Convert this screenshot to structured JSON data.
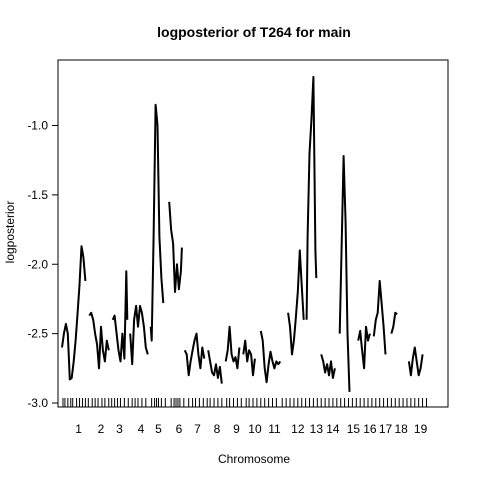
{
  "chart_data": {
    "type": "line",
    "title": "logposterior of T264 for main",
    "xlabel": "Chromosome",
    "ylabel": "logposterior",
    "ylim": [
      -3.0,
      -0.6
    ],
    "yticks": [
      -3.0,
      -2.5,
      -2.0,
      -1.5,
      -1.0
    ],
    "ytick_labels": [
      "-3.0",
      "-2.5",
      "-2.0",
      "-1.5",
      "-1.0"
    ],
    "xlim": [
      0,
      19.6
    ],
    "grid": false,
    "legend": "none",
    "line_color": "#000000",
    "chromosomes": [
      {
        "label": "1",
        "center": 0.85,
        "points": [
          [
            0.0,
            -2.6
          ],
          [
            0.1,
            -2.5
          ],
          [
            0.2,
            -2.43
          ],
          [
            0.3,
            -2.5
          ],
          [
            0.4,
            -2.83
          ],
          [
            0.5,
            -2.82
          ],
          [
            0.6,
            -2.7
          ],
          [
            0.7,
            -2.55
          ],
          [
            0.8,
            -2.35
          ],
          [
            0.9,
            -2.15
          ],
          [
            1.0,
            -1.87
          ],
          [
            1.1,
            -1.95
          ],
          [
            1.2,
            -2.12
          ]
        ]
      },
      {
        "label": "2",
        "center": 2.0,
        "points": [
          [
            1.4,
            -2.37
          ],
          [
            1.5,
            -2.35
          ],
          [
            1.6,
            -2.4
          ],
          [
            1.7,
            -2.5
          ],
          [
            1.8,
            -2.58
          ],
          [
            1.9,
            -2.75
          ],
          [
            2.0,
            -2.45
          ],
          [
            2.1,
            -2.62
          ],
          [
            2.2,
            -2.7
          ],
          [
            2.3,
            -2.55
          ],
          [
            2.4,
            -2.62
          ]
        ]
      },
      {
        "label": "3",
        "center": 2.95,
        "points": [
          [
            2.6,
            -2.4
          ],
          [
            2.7,
            -2.37
          ],
          [
            2.8,
            -2.5
          ],
          [
            2.9,
            -2.62
          ],
          [
            3.0,
            -2.7
          ],
          [
            3.1,
            -2.5
          ],
          [
            3.2,
            -2.68
          ],
          [
            3.3,
            -2.05
          ],
          [
            3.35,
            -2.4
          ]
        ]
      },
      {
        "label": "4",
        "center": 4.05,
        "points": [
          [
            3.5,
            -2.5
          ],
          [
            3.6,
            -2.72
          ],
          [
            3.7,
            -2.4
          ],
          [
            3.8,
            -2.3
          ],
          [
            3.9,
            -2.45
          ],
          [
            4.0,
            -2.3
          ],
          [
            4.1,
            -2.35
          ],
          [
            4.2,
            -2.45
          ],
          [
            4.3,
            -2.6
          ],
          [
            4.4,
            -2.65
          ]
        ]
      },
      {
        "label": "5",
        "center": 4.95,
        "points": [
          [
            4.55,
            -2.45
          ],
          [
            4.6,
            -2.55
          ],
          [
            4.7,
            -1.8
          ],
          [
            4.8,
            -0.85
          ],
          [
            4.9,
            -1.0
          ],
          [
            5.0,
            -1.8
          ],
          [
            5.1,
            -2.1
          ],
          [
            5.2,
            -2.28
          ]
        ]
      },
      {
        "label": "6",
        "center": 6.0,
        "points": [
          [
            5.5,
            -1.55
          ],
          [
            5.6,
            -1.75
          ],
          [
            5.7,
            -1.85
          ],
          [
            5.8,
            -2.2
          ],
          [
            5.9,
            -2.0
          ],
          [
            6.0,
            -2.18
          ],
          [
            6.1,
            -2.05
          ],
          [
            6.15,
            -1.88
          ]
        ]
      },
      {
        "label": "7",
        "center": 6.95,
        "points": [
          [
            6.3,
            -2.62
          ],
          [
            6.4,
            -2.65
          ],
          [
            6.5,
            -2.8
          ],
          [
            6.6,
            -2.7
          ],
          [
            6.7,
            -2.62
          ],
          [
            6.8,
            -2.55
          ],
          [
            6.9,
            -2.5
          ],
          [
            7.0,
            -2.65
          ],
          [
            7.1,
            -2.75
          ],
          [
            7.2,
            -2.6
          ],
          [
            7.3,
            -2.68
          ]
        ]
      },
      {
        "label": "8",
        "center": 7.95,
        "points": [
          [
            7.5,
            -2.62
          ],
          [
            7.6,
            -2.7
          ],
          [
            7.7,
            -2.78
          ],
          [
            7.8,
            -2.8
          ],
          [
            7.9,
            -2.72
          ],
          [
            8.0,
            -2.82
          ],
          [
            8.1,
            -2.74
          ],
          [
            8.2,
            -2.86
          ]
        ]
      },
      {
        "label": "9",
        "center": 8.95,
        "points": [
          [
            8.4,
            -2.7
          ],
          [
            8.5,
            -2.62
          ],
          [
            8.6,
            -2.45
          ],
          [
            8.7,
            -2.65
          ],
          [
            8.8,
            -2.7
          ],
          [
            8.9,
            -2.67
          ],
          [
            9.0,
            -2.75
          ],
          [
            9.1,
            -2.6
          ]
        ]
      },
      {
        "label": "10",
        "center": 9.9,
        "points": [
          [
            9.3,
            -2.65
          ],
          [
            9.4,
            -2.55
          ],
          [
            9.5,
            -2.7
          ],
          [
            9.6,
            -2.62
          ],
          [
            9.7,
            -2.65
          ],
          [
            9.8,
            -2.8
          ],
          [
            9.9,
            -2.68
          ]
        ]
      },
      {
        "label": "11",
        "center": 10.9,
        "points": [
          [
            10.2,
            -2.48
          ],
          [
            10.3,
            -2.55
          ],
          [
            10.4,
            -2.75
          ],
          [
            10.5,
            -2.85
          ],
          [
            10.6,
            -2.72
          ],
          [
            10.7,
            -2.63
          ],
          [
            10.8,
            -2.7
          ],
          [
            10.9,
            -2.75
          ],
          [
            11.0,
            -2.7
          ],
          [
            11.1,
            -2.72
          ],
          [
            11.2,
            -2.7
          ]
        ]
      },
      {
        "label": "12",
        "center": 12.1,
        "points": [
          [
            11.6,
            -2.35
          ],
          [
            11.7,
            -2.45
          ],
          [
            11.8,
            -2.65
          ],
          [
            11.9,
            -2.55
          ],
          [
            12.0,
            -2.38
          ],
          [
            12.1,
            -2.2
          ],
          [
            12.2,
            -1.9
          ],
          [
            12.3,
            -2.15
          ],
          [
            12.4,
            -2.4
          ]
        ]
      },
      {
        "label": "13",
        "center": 13.05,
        "points": [
          [
            12.55,
            -2.4
          ],
          [
            12.6,
            -1.8
          ],
          [
            12.7,
            -1.2
          ],
          [
            12.8,
            -0.95
          ],
          [
            12.9,
            -0.65
          ],
          [
            13.0,
            -1.9
          ],
          [
            13.05,
            -2.1
          ]
        ]
      },
      {
        "label": "14",
        "center": 13.9,
        "points": [
          [
            13.3,
            -2.65
          ],
          [
            13.4,
            -2.7
          ],
          [
            13.5,
            -2.78
          ],
          [
            13.6,
            -2.72
          ],
          [
            13.7,
            -2.8
          ],
          [
            13.8,
            -2.7
          ],
          [
            13.9,
            -2.82
          ],
          [
            14.0,
            -2.75
          ]
        ]
      },
      {
        "label": "15",
        "center": 14.95,
        "points": [
          [
            14.25,
            -2.5
          ],
          [
            14.35,
            -1.85
          ],
          [
            14.45,
            -1.22
          ],
          [
            14.55,
            -1.7
          ],
          [
            14.65,
            -2.5
          ],
          [
            14.75,
            -2.92
          ]
        ]
      },
      {
        "label": "16",
        "center": 15.8,
        "points": [
          [
            15.2,
            -2.55
          ],
          [
            15.3,
            -2.48
          ],
          [
            15.4,
            -2.62
          ],
          [
            15.5,
            -2.75
          ],
          [
            15.6,
            -2.45
          ],
          [
            15.7,
            -2.55
          ],
          [
            15.8,
            -2.5
          ]
        ]
      },
      {
        "label": "17",
        "center": 16.6,
        "points": [
          [
            16.0,
            -2.52
          ],
          [
            16.1,
            -2.4
          ],
          [
            16.2,
            -2.35
          ],
          [
            16.3,
            -2.12
          ],
          [
            16.4,
            -2.28
          ],
          [
            16.5,
            -2.45
          ],
          [
            16.6,
            -2.65
          ]
        ]
      },
      {
        "label": "18",
        "center": 17.4,
        "points": [
          [
            16.9,
            -2.5
          ],
          [
            17.0,
            -2.45
          ],
          [
            17.1,
            -2.35
          ],
          [
            17.2,
            -2.36
          ]
        ]
      },
      {
        "label": "19",
        "center": 18.4,
        "points": [
          [
            17.8,
            -2.7
          ],
          [
            17.9,
            -2.8
          ],
          [
            18.0,
            -2.68
          ],
          [
            18.1,
            -2.6
          ],
          [
            18.2,
            -2.7
          ],
          [
            18.3,
            -2.8
          ],
          [
            18.4,
            -2.75
          ],
          [
            18.5,
            -2.65
          ]
        ]
      }
    ],
    "rug_markers": [
      0.05,
      0.15,
      0.3,
      0.45,
      0.55,
      0.75,
      0.9,
      1.05,
      1.2,
      1.35,
      1.55,
      1.7,
      1.85,
      2.05,
      2.2,
      2.4,
      2.55,
      2.7,
      2.85,
      3.0,
      3.2,
      3.4,
      3.6,
      3.75,
      3.9,
      4.1,
      4.3,
      4.6,
      4.75,
      4.85,
      4.95,
      5.1,
      5.3,
      5.6,
      5.75,
      5.85,
      5.95,
      6.05,
      6.25,
      6.5,
      6.7,
      6.85,
      7.05,
      7.25,
      7.45,
      7.6,
      7.8,
      8.0,
      8.2,
      8.45,
      8.6,
      8.8,
      9.0,
      9.2,
      9.45,
      9.6,
      9.8,
      10.0,
      10.2,
      10.4,
      10.6,
      10.8,
      11.0,
      11.3,
      11.5,
      11.7,
      11.9,
      12.1,
      12.3,
      12.5,
      12.7,
      12.9,
      13.1,
      13.3,
      13.5,
      13.7,
      13.9,
      14.1,
      14.3,
      14.5,
      14.7,
      14.9,
      15.1,
      15.3,
      15.5,
      15.7,
      15.9,
      16.1,
      16.3,
      16.5,
      16.7,
      16.9,
      17.1,
      17.3,
      17.5,
      17.7,
      17.9,
      18.1,
      18.3,
      18.5,
      18.7
    ]
  }
}
